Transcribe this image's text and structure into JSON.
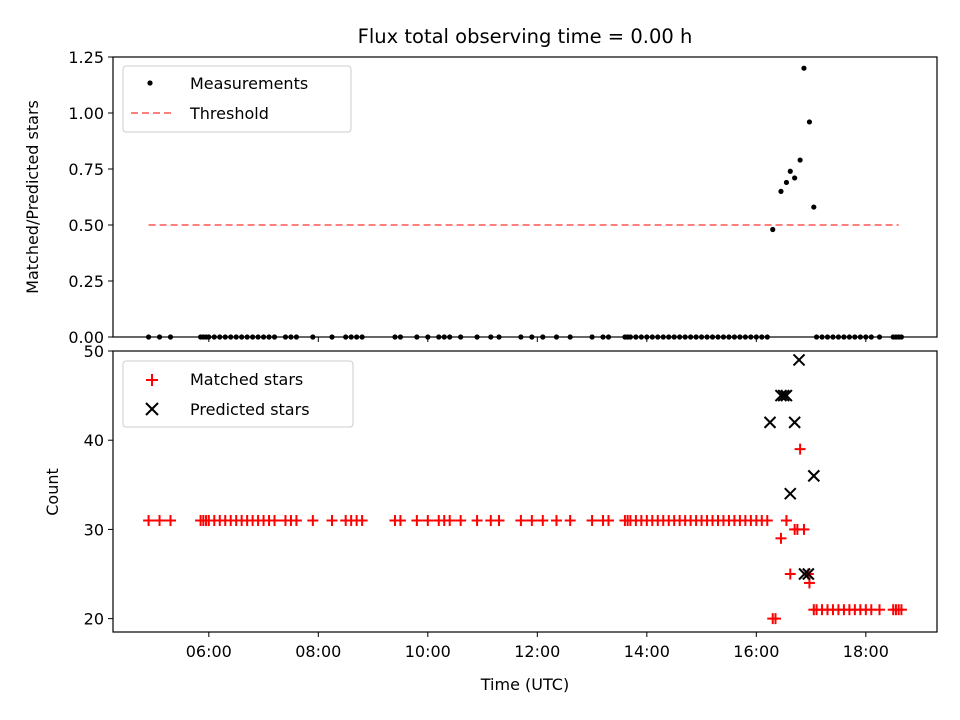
{
  "chart_data": [
    {
      "type": "scatter",
      "title": "Flux total observing time = 0.00 h",
      "xlabel": "",
      "ylabel": "Matched/Predicted stars",
      "xlim_hours": [
        4.25,
        19.3
      ],
      "ylim": [
        0,
        1.25
      ],
      "yticks": [
        0.0,
        0.25,
        0.5,
        0.75,
        1.0,
        1.25
      ],
      "ytick_labels": [
        "0.00",
        "0.25",
        "0.50",
        "0.75",
        "1.00",
        "1.25"
      ],
      "legend_position": "top-left",
      "threshold": {
        "name": "Threshold",
        "value": 0.5,
        "x_range_hours": [
          4.9,
          18.6
        ],
        "color": "#ff7f7f",
        "style": "dashed"
      },
      "series": [
        {
          "name": "Measurements",
          "color": "#000000",
          "marker": "dot",
          "x_hours": [
            4.9,
            5.1,
            5.3,
            5.85,
            5.9,
            5.95,
            6.0,
            6.1,
            6.2,
            6.3,
            6.4,
            6.5,
            6.6,
            6.7,
            6.8,
            6.9,
            7.0,
            7.1,
            7.2,
            7.4,
            7.5,
            7.6,
            7.9,
            8.25,
            8.5,
            8.6,
            8.7,
            8.8,
            9.4,
            9.5,
            9.8,
            10.0,
            10.2,
            10.3,
            10.4,
            10.6,
            10.9,
            11.15,
            11.3,
            11.7,
            11.9,
            12.1,
            12.35,
            12.6,
            13.0,
            13.2,
            13.3,
            13.6,
            13.65,
            13.7,
            13.8,
            13.9,
            14.0,
            14.1,
            14.2,
            14.3,
            14.4,
            14.5,
            14.6,
            14.7,
            14.8,
            14.9,
            15.0,
            15.1,
            15.2,
            15.3,
            15.4,
            15.5,
            15.6,
            15.7,
            15.8,
            15.9,
            16.0,
            16.1,
            16.2,
            16.3,
            16.45,
            16.55,
            16.62,
            16.7,
            16.8,
            16.87,
            16.97,
            17.05,
            17.1,
            17.2,
            17.3,
            17.4,
            17.5,
            17.6,
            17.7,
            17.8,
            17.9,
            18.0,
            18.1,
            18.25,
            18.5,
            18.55,
            18.6,
            18.65
          ],
          "y": [
            0,
            0,
            0,
            0,
            0,
            0,
            0,
            0,
            0,
            0,
            0,
            0,
            0,
            0,
            0,
            0,
            0,
            0,
            0,
            0,
            0,
            0,
            0,
            0,
            0,
            0,
            0,
            0,
            0,
            0,
            0,
            0,
            0,
            0,
            0,
            0,
            0,
            0,
            0,
            0,
            0,
            0,
            0,
            0,
            0,
            0,
            0,
            0,
            0,
            0,
            0,
            0,
            0,
            0,
            0,
            0,
            0,
            0,
            0,
            0,
            0,
            0,
            0,
            0,
            0,
            0,
            0,
            0,
            0,
            0,
            0,
            0,
            0,
            0,
            0,
            0.48,
            0.65,
            0.69,
            0.74,
            0.71,
            0.79,
            1.2,
            0.96,
            0.58,
            0,
            0,
            0,
            0,
            0,
            0,
            0,
            0,
            0,
            0,
            0,
            0,
            0,
            0,
            0,
            0
          ]
        }
      ]
    },
    {
      "type": "scatter",
      "title": "",
      "xlabel": "Time (UTC)",
      "ylabel": "Count",
      "xlim_hours": [
        4.25,
        19.3
      ],
      "ylim": [
        18.5,
        50
      ],
      "yticks": [
        20,
        30,
        40,
        50
      ],
      "ytick_labels": [
        "20",
        "30",
        "40",
        "50"
      ],
      "xticks_hours": [
        6,
        8,
        10,
        12,
        14,
        16,
        18
      ],
      "xtick_labels": [
        "06:00",
        "08:00",
        "10:00",
        "12:00",
        "14:00",
        "16:00",
        "18:00"
      ],
      "legend_position": "top-left",
      "series": [
        {
          "name": "Matched stars",
          "color": "#ff0000",
          "marker": "plus",
          "x_hours": [
            4.9,
            5.1,
            5.3,
            5.85,
            5.9,
            5.95,
            6.0,
            6.1,
            6.2,
            6.3,
            6.4,
            6.5,
            6.6,
            6.7,
            6.8,
            6.9,
            7.0,
            7.1,
            7.2,
            7.4,
            7.5,
            7.6,
            7.9,
            8.25,
            8.5,
            8.6,
            8.7,
            8.8,
            9.4,
            9.5,
            9.8,
            10.0,
            10.2,
            10.3,
            10.4,
            10.6,
            10.9,
            11.15,
            11.3,
            11.7,
            11.9,
            12.1,
            12.35,
            12.6,
            13.0,
            13.2,
            13.3,
            13.6,
            13.65,
            13.7,
            13.8,
            13.9,
            14.0,
            14.1,
            14.2,
            14.3,
            14.4,
            14.5,
            14.6,
            14.7,
            14.8,
            14.9,
            15.0,
            15.1,
            15.2,
            15.3,
            15.4,
            15.5,
            15.6,
            15.7,
            15.8,
            15.9,
            16.0,
            16.1,
            16.2,
            16.3,
            16.45,
            16.55,
            16.62,
            16.7,
            16.8,
            16.87,
            16.97,
            17.05,
            17.1,
            17.2,
            17.3,
            17.4,
            17.5,
            17.6,
            17.7,
            17.8,
            17.9,
            18.0,
            18.1,
            18.25,
            18.5,
            18.55,
            18.6,
            18.65,
            16.35,
            16.75,
            16.95
          ],
          "y": [
            31,
            31,
            31,
            31,
            31,
            31,
            31,
            31,
            31,
            31,
            31,
            31,
            31,
            31,
            31,
            31,
            31,
            31,
            31,
            31,
            31,
            31,
            31,
            31,
            31,
            31,
            31,
            31,
            31,
            31,
            31,
            31,
            31,
            31,
            31,
            31,
            31,
            31,
            31,
            31,
            31,
            31,
            31,
            31,
            31,
            31,
            31,
            31,
            31,
            31,
            31,
            31,
            31,
            31,
            31,
            31,
            31,
            31,
            31,
            31,
            31,
            31,
            31,
            31,
            31,
            31,
            31,
            31,
            31,
            31,
            31,
            31,
            31,
            31,
            31,
            20,
            29,
            31,
            25,
            30,
            39,
            30,
            24,
            21,
            21,
            21,
            21,
            21,
            21,
            21,
            21,
            21,
            21,
            21,
            21,
            21,
            21,
            21,
            21,
            21,
            20,
            30,
            25
          ]
        },
        {
          "name": "Predicted stars",
          "color": "#000000",
          "marker": "x",
          "x_hours": [
            16.25,
            16.45,
            16.5,
            16.55,
            16.62,
            16.7,
            16.78,
            16.88,
            16.95,
            17.05
          ],
          "y": [
            42,
            45,
            45,
            45,
            34,
            42,
            49,
            25,
            25,
            36
          ]
        }
      ]
    }
  ]
}
